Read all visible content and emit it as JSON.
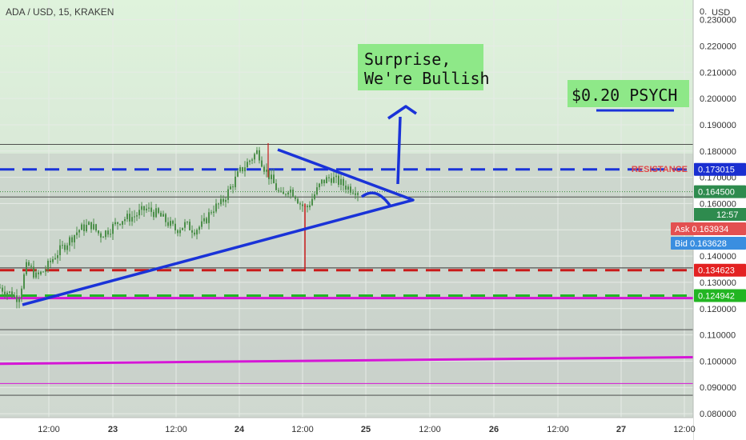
{
  "symbol": "ADA / USD, 15, KRAKEN",
  "currency": "USD",
  "colors": {
    "bg_top": "#dff3dc",
    "bg_bottom": "#cfd8d0",
    "grid": "#e6ebe6",
    "candle": "#4c8f4a",
    "blue": "#1a33d8",
    "red": "#c91a1a",
    "green": "#21b525",
    "magenta": "#d516d6",
    "resistance_text": "#e04848",
    "callout_bg": "#8ee888"
  },
  "annotations": {
    "surprise_line1": "Surprise,",
    "surprise_line2": "We're Bullish",
    "psych": "$0.20 PSYCH",
    "resistance": "RESISTANCE"
  },
  "price_tags": {
    "blue": "0.173015",
    "last": "0.164500",
    "countdown": "12:57",
    "ask_label": "Ask",
    "ask": "0.163934",
    "bid_label": "Bid",
    "bid": "0.163628",
    "red": "0.134623",
    "green": "0.124942"
  },
  "chart_data": {
    "type": "candlestick",
    "yaxis_ticks": [
      "0.230000",
      "0.220000",
      "0.210000",
      "0.200000",
      "0.190000",
      "0.180000",
      "0.170000",
      "0.160000",
      "0.150000",
      "0.140000",
      "0.130000",
      "0.120000",
      "0.110000",
      "0.100000",
      "0.090000",
      "0.080000"
    ],
    "xaxis_ticks": [
      "12:00",
      "23",
      "12:00",
      "24",
      "12:00",
      "25",
      "12:00",
      "26",
      "12:00",
      "27",
      "12:00"
    ],
    "ylim": [
      0.0785,
      0.2375
    ],
    "levels": [
      {
        "name": "resistance",
        "value": 0.173015,
        "color": "blue",
        "style": "dashed"
      },
      {
        "name": "support_red",
        "value": 0.134623,
        "color": "red",
        "style": "dashed"
      },
      {
        "name": "support_green",
        "value": 0.124942,
        "color": "green",
        "style": "dashed"
      },
      {
        "name": "magenta_upper",
        "value": 0.124,
        "color": "magenta",
        "style": "solid"
      },
      {
        "name": "psych",
        "value": 0.2,
        "color": "blue",
        "style": "solid"
      }
    ],
    "price_path": [
      [
        0.0,
        0.128
      ],
      [
        0.03,
        0.126
      ],
      [
        0.06,
        0.124
      ],
      [
        0.09,
        0.137
      ],
      [
        0.12,
        0.132
      ],
      [
        0.15,
        0.135
      ],
      [
        0.18,
        0.14
      ],
      [
        0.22,
        0.145
      ],
      [
        0.26,
        0.15
      ],
      [
        0.3,
        0.152
      ],
      [
        0.33,
        0.148
      ],
      [
        0.36,
        0.15
      ],
      [
        0.4,
        0.154
      ],
      [
        0.44,
        0.155
      ],
      [
        0.48,
        0.158
      ],
      [
        0.52,
        0.156
      ],
      [
        0.55,
        0.153
      ],
      [
        0.58,
        0.15
      ],
      [
        0.61,
        0.152
      ],
      [
        0.64,
        0.15
      ],
      [
        0.67,
        0.152
      ],
      [
        0.7,
        0.158
      ],
      [
        0.73,
        0.16
      ],
      [
        0.76,
        0.166
      ],
      [
        0.79,
        0.172
      ],
      [
        0.82,
        0.176
      ],
      [
        0.85,
        0.18
      ],
      [
        0.87,
        0.174
      ],
      [
        0.89,
        0.17
      ],
      [
        0.91,
        0.166
      ],
      [
        0.93,
        0.162
      ],
      [
        0.95,
        0.166
      ],
      [
        0.97,
        0.164
      ],
      [
        0.99,
        0.16
      ],
      [
        1.01,
        0.158
      ],
      [
        1.03,
        0.162
      ],
      [
        1.06,
        0.168
      ],
      [
        1.09,
        0.17
      ],
      [
        1.12,
        0.168
      ],
      [
        1.15,
        0.166
      ],
      [
        1.18,
        0.165
      ]
    ],
    "x_range_days": [
      0,
      3.35
    ]
  }
}
